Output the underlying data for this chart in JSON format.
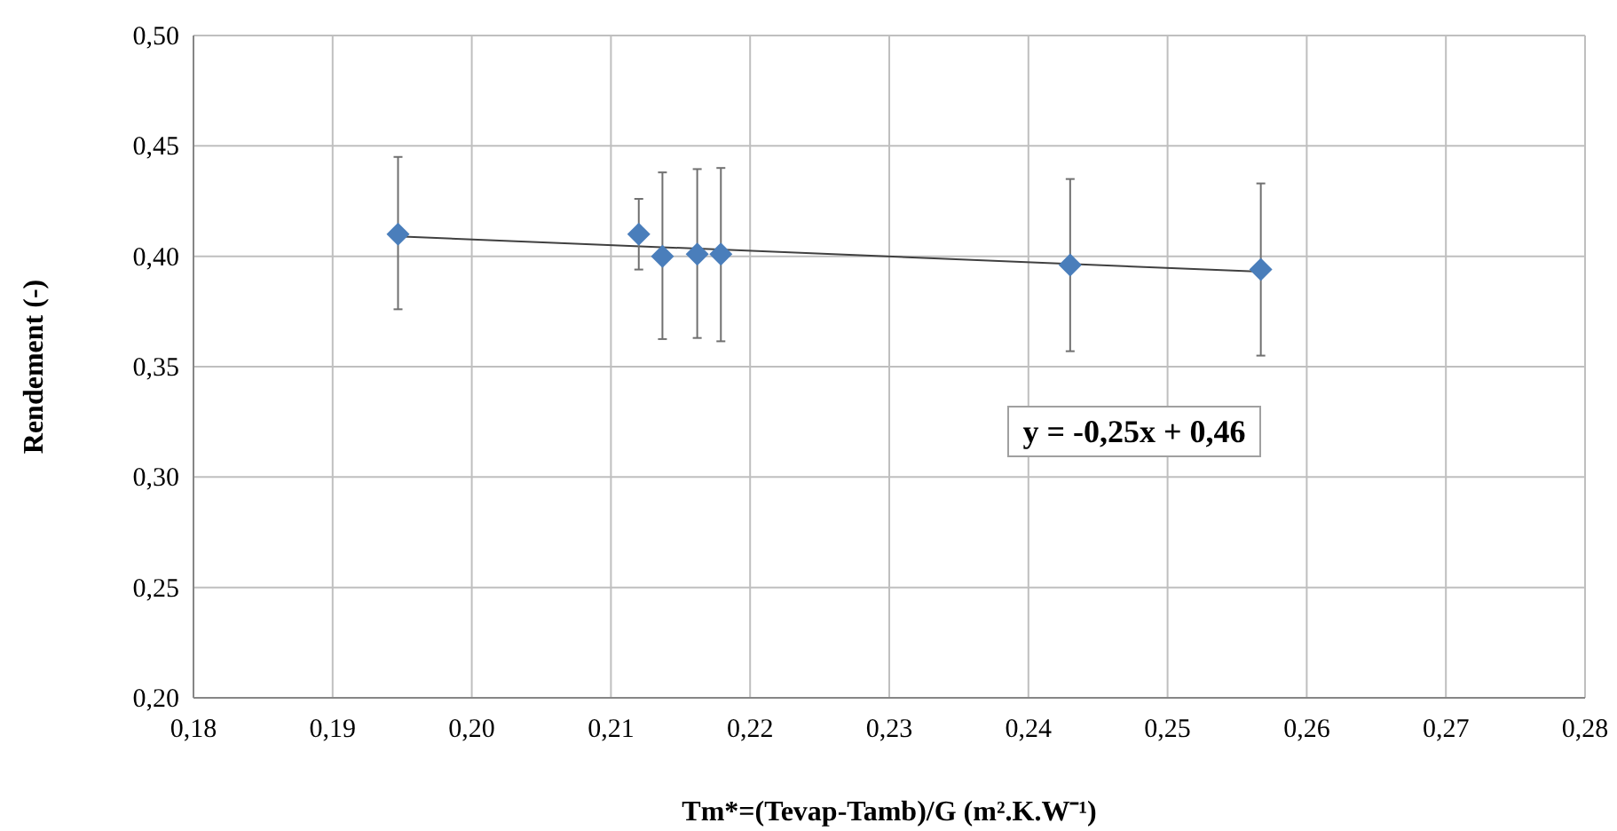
{
  "chart_data": {
    "type": "scatter",
    "xlabel": "Tm*=(Tevap-Tamb)/G (m².K.W⁻¹)",
    "ylabel": "Rendement (-)",
    "xlim": [
      0.18,
      0.28
    ],
    "ylim": [
      0.2,
      0.5
    ],
    "xticks": [
      {
        "value": 0.18,
        "label": "0,18"
      },
      {
        "value": 0.19,
        "label": "0,19"
      },
      {
        "value": 0.2,
        "label": "0,20"
      },
      {
        "value": 0.21,
        "label": "0,21"
      },
      {
        "value": 0.22,
        "label": "0,22"
      },
      {
        "value": 0.23,
        "label": "0,23"
      },
      {
        "value": 0.24,
        "label": "0,24"
      },
      {
        "value": 0.25,
        "label": "0,25"
      },
      {
        "value": 0.26,
        "label": "0,26"
      },
      {
        "value": 0.27,
        "label": "0,27"
      },
      {
        "value": 0.28,
        "label": "0,28"
      }
    ],
    "yticks": [
      {
        "value": 0.2,
        "label": "0,20"
      },
      {
        "value": 0.25,
        "label": "0,25"
      },
      {
        "value": 0.3,
        "label": "0,30"
      },
      {
        "value": 0.35,
        "label": "0,35"
      },
      {
        "value": 0.4,
        "label": "0,40"
      },
      {
        "value": 0.45,
        "label": "0,45"
      },
      {
        "value": 0.5,
        "label": "0,50"
      }
    ],
    "grid": true,
    "series": [
      {
        "color": "#4a7ebb",
        "marker": "diamond",
        "x": [
          0.1947,
          0.212,
          0.2137,
          0.2162,
          0.2179,
          0.243,
          0.2567
        ],
        "values": [
          0.41,
          0.41,
          0.4,
          0.401,
          0.401,
          0.396,
          0.394
        ],
        "errors": [
          [
            0.376,
            0.445
          ],
          [
            0.394,
            0.426
          ],
          [
            0.3625,
            0.438
          ],
          [
            0.363,
            0.4395
          ],
          [
            0.3615,
            0.44
          ],
          [
            0.357,
            0.435
          ],
          [
            0.355,
            0.433
          ]
        ]
      },
      {
        "type": "line",
        "color": "#404040",
        "marker": "none",
        "line_style": "solid",
        "x": [
          0.1947,
          0.2567
        ],
        "values": [
          0.409,
          0.393
        ]
      }
    ],
    "annotations": [
      "y = -0,25x + 0,46"
    ]
  }
}
